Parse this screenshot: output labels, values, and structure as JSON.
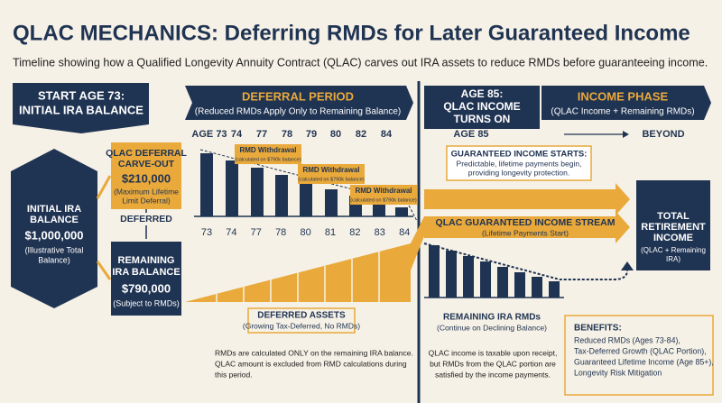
{
  "header": {
    "title": "QLAC MECHANICS: Deferring RMDs for Later Guaranteed Income",
    "subtitle": "Timeline showing how a Qualified Longevity Annuity Contract (QLAC) carves out IRA assets to reduce RMDs before guaranteeing income."
  },
  "start_banner": {
    "lines": [
      "START AGE 73:",
      "INITIAL IRA BALANCE"
    ]
  },
  "deferral_banner": {
    "title": "DEFERRAL PERIOD",
    "subtitle": "(Reduced RMDs Apply Only to Remaining Balance)"
  },
  "age85_banner": {
    "lines": [
      "AGE 85:",
      "QLAC INCOME",
      "TURNS ON"
    ]
  },
  "income_banner": {
    "title": "INCOME PHASE",
    "subtitle": "(QLAC Income + Remaining RMDs)"
  },
  "top_ages": [
    "AGE 73",
    "74",
    "77",
    "78",
    "79",
    "80",
    "82",
    "84"
  ],
  "income_timeline": {
    "start": "AGE 85",
    "end": "BEYOND"
  },
  "initial_ira": {
    "lines": [
      "INITIAL IRA",
      "BALANCE"
    ],
    "amount": "$1,000,000",
    "note": [
      "(Illustrative Total",
      "Balance)"
    ]
  },
  "qlac_box": {
    "lines": [
      "QLAC DEFERRAL",
      "CARVE-OUT"
    ],
    "amount": "$210,000",
    "note": [
      "(Maximum Lifetime",
      "Limit Deferral)"
    ]
  },
  "deferred_label": "DEFERRED",
  "remaining_box": {
    "lines": [
      "REMAINING",
      "IRA BALANCE"
    ],
    "amount": "$790,000",
    "note": "(Subject to RMDs)"
  },
  "rmd_labels": [
    {
      "title": "RMD Withdrawal",
      "note": "(calculated on $790k balance)"
    },
    {
      "title": "RMD Withdrawal",
      "note": "(calculated on $790k balance)"
    },
    {
      "title": "RMD Withdrawal",
      "note": "(calculated on $790k balance)"
    }
  ],
  "bottom_ages": [
    "73",
    "74",
    "77",
    "78",
    "80",
    "81",
    "82",
    "83",
    "84"
  ],
  "deferred_assets": {
    "title": "DEFERRED ASSETS",
    "subtitle": "(Growing Tax-Deferred, No RMDs)"
  },
  "guaranteed_start": {
    "title": "GUARANTEED INCOME STARTS:",
    "lines": [
      "Predictable, lifetime payments begin,",
      "providing longevity protection."
    ]
  },
  "income_stream": {
    "title": "QLAC GUARANTEED INCOME STREAM",
    "subtitle": "(Lifetime Payments Start)"
  },
  "total_income": {
    "lines": [
      "TOTAL",
      "RETIREMENT",
      "INCOME"
    ],
    "note": [
      "(QLAC + Remaining",
      "IRA)"
    ]
  },
  "remaining_rmds": {
    "title": "REMAINING IRA RMDs",
    "subtitle": "(Continue on Declining Balance)"
  },
  "note_deferral": [
    "RMDs are calculated ONLY on the remaining IRA balance.",
    "QLAC amount is excluded from RMD calculations during",
    "this period."
  ],
  "note_income": [
    "QLAC income is taxable upon receipt,",
    "but RMDs from the QLAC portion are",
    "satisfied by the income payments."
  ],
  "benefits": {
    "title": "BENEFITS:",
    "items": [
      "Reduced RMDs (Ages 73-84),",
      "Tax-Deferred Growth (QLAC Portion),",
      "Guaranteed Lifetime Income (Age 85+),",
      "Longevity Risk Mitigation"
    ]
  }
}
